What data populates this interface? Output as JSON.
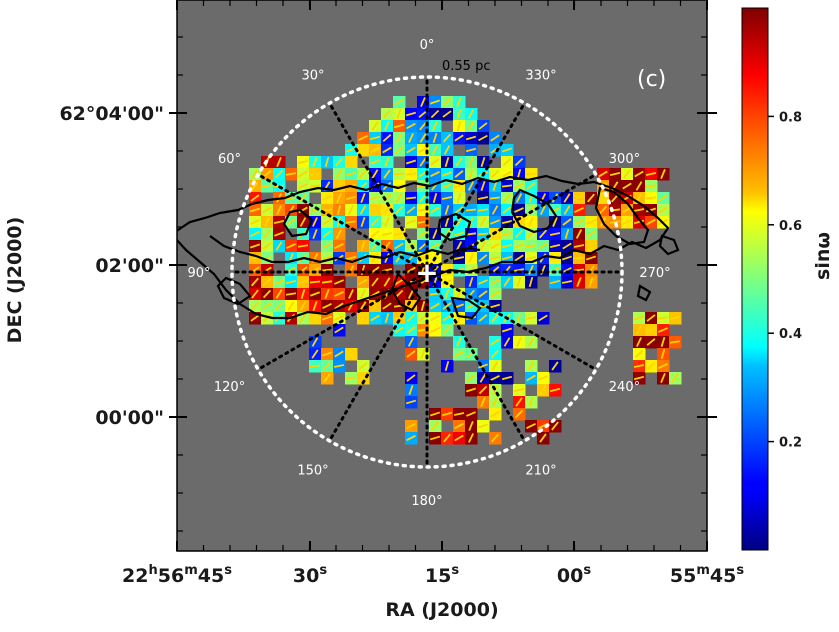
{
  "chart_data": {
    "type": "heatmap",
    "panel_label": "(c)",
    "xlabel": "RA (J2000)",
    "ylabel": "DEC (J2000)",
    "x_ticks": [
      {
        "value": "22:56:45",
        "parts": [
          [
            "22",
            ""
          ],
          [
            "h",
            "sup"
          ],
          [
            "56",
            ""
          ],
          [
            "m",
            "sup"
          ],
          [
            "45",
            ""
          ],
          [
            "s",
            "sup"
          ]
        ]
      },
      {
        "value": "22:56:30",
        "parts": [
          [
            "30",
            ""
          ],
          [
            "s",
            "sup"
          ]
        ]
      },
      {
        "value": "22:56:15",
        "parts": [
          [
            "15",
            ""
          ],
          [
            "s",
            "sup"
          ]
        ]
      },
      {
        "value": "22:56:00",
        "parts": [
          [
            "00",
            ""
          ],
          [
            "s",
            "sup"
          ]
        ]
      },
      {
        "value": "22:55:45",
        "parts": [
          [
            "55",
            ""
          ],
          [
            "m",
            "sup"
          ],
          [
            "45",
            ""
          ],
          [
            "s",
            "sup"
          ]
        ]
      }
    ],
    "y_ticks": [
      "62°04'00\"",
      "02'00\"",
      "00'00\""
    ],
    "center_marker": "+",
    "circle_radius_label": "0.55 pc",
    "angle_labels": [
      "0°",
      "30°",
      "60°",
      "90°",
      "120°",
      "150°",
      "180°",
      "210°",
      "240°",
      "270°",
      "300°",
      "330°"
    ],
    "colorbar": {
      "label": "sinω",
      "colormap": "jet",
      "range": [
        0,
        1
      ],
      "ticks": [
        {
          "value": 0.2,
          "label": "0.2"
        },
        {
          "value": 0.4,
          "label": "0.4"
        },
        {
          "value": 0.6,
          "label": "0.6"
        },
        {
          "value": 0.8,
          "label": "0.8"
        }
      ]
    },
    "background_color": "#6b6b6b",
    "segment_color": "#ffd400",
    "contour_color": "#000000",
    "grid": false
  }
}
